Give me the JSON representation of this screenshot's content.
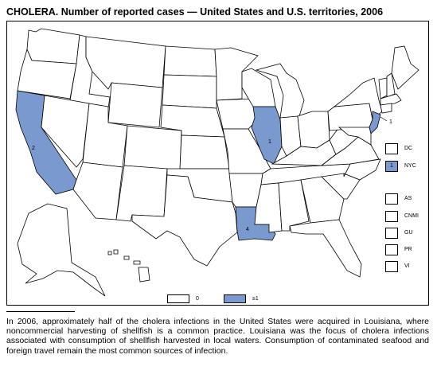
{
  "title": "CHOLERA. Number of reported cases — United States and U.S. territories, 2006",
  "colors": {
    "reported": "#7a99cf",
    "none": "#ffffff",
    "border": "#000000"
  },
  "state_labels": {
    "california": "2",
    "illinois": "1",
    "louisiana": "4",
    "new_jersey": "1"
  },
  "territories": [
    {
      "code": "DC",
      "value": "",
      "highlighted": false
    },
    {
      "code": "NYC",
      "value": "1",
      "highlighted": true
    },
    {
      "code": "AS",
      "value": "",
      "highlighted": false
    },
    {
      "code": "CNMI",
      "value": "",
      "highlighted": false
    },
    {
      "code": "GU",
      "value": "",
      "highlighted": false
    },
    {
      "code": "PR",
      "value": "",
      "highlighted": false
    },
    {
      "code": "VI",
      "value": "",
      "highlighted": false
    }
  ],
  "legend": [
    {
      "label": "0",
      "color": "#ffffff"
    },
    {
      "label": "≥1",
      "color": "#7a99cf"
    }
  ],
  "footnote": "In 2006, approximately half of the cholera infections in the United States were acquired in Louisiana, where noncommercial harvesting of shellfish is a common practice. Louisiana was the focus of cholera infections associated with consumption of shellfish harvested in local waters. Consumption of contaminated seafood and foreign travel remain the most common sources of infection."
}
